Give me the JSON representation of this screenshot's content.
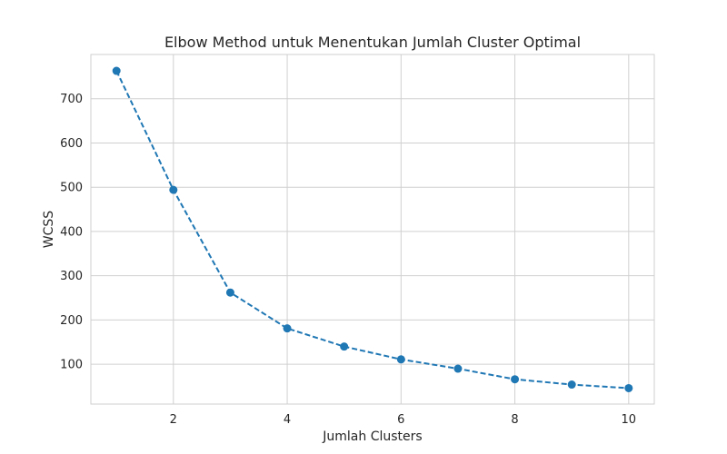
{
  "chart_data": {
    "type": "line",
    "title": "Elbow Method untuk Menentukan Jumlah Cluster Optimal",
    "xlabel": "Jumlah Clusters",
    "ylabel": "WCSS",
    "x": [
      1,
      2,
      3,
      4,
      5,
      6,
      7,
      8,
      9,
      10
    ],
    "series": [
      {
        "values": [
          763,
          494,
          262,
          181,
          140,
          111,
          90,
          66,
          54,
          46
        ],
        "color": "#1f77b4",
        "line_style": "dashed",
        "marker": "circle"
      }
    ],
    "xlim": [
      0.55,
      10.45
    ],
    "ylim": [
      10,
      800
    ],
    "xticks": [
      2,
      4,
      6,
      8,
      10
    ],
    "yticks": [
      100,
      200,
      300,
      400,
      500,
      600,
      700
    ],
    "grid": true,
    "legend": "none"
  }
}
